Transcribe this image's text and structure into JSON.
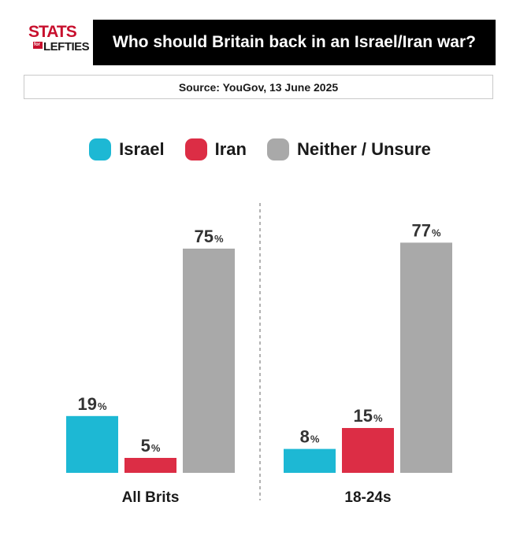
{
  "logo": {
    "word1": "STATS",
    "word2": "for",
    "word3": "LEFTIES"
  },
  "title": "Who should Britain back in an Israel/Iran war?",
  "source": "Source: YouGov, 13 June 2025",
  "chart_data": {
    "type": "bar",
    "title": "Who should Britain back in an Israel/Iran war?",
    "subtitle": "Source: YouGov, 13 June 2025",
    "xlabel": "",
    "ylabel": "",
    "ylim": [
      0,
      100
    ],
    "unit": "%",
    "grid": false,
    "legend_placement": "top-center",
    "categories": [
      "All Brits",
      "18-24s"
    ],
    "series": [
      {
        "name": "Israel",
        "color": "#1db8d4",
        "values": [
          19,
          8
        ]
      },
      {
        "name": "Iran",
        "color": "#dc2d45",
        "values": [
          5,
          15
        ]
      },
      {
        "name": "Neither / Unsure",
        "color": "#a9a9a9",
        "values": [
          75,
          77
        ]
      }
    ]
  }
}
